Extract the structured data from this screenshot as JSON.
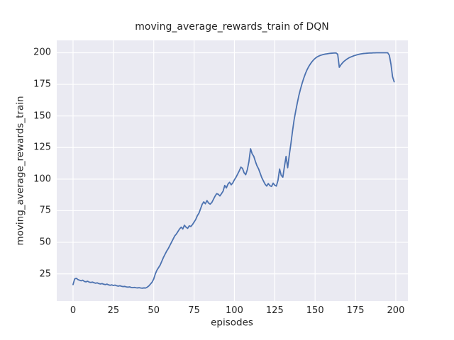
{
  "chart_data": {
    "type": "line",
    "title": "moving_average_rewards_train of DQN",
    "xlabel": "episodes",
    "ylabel": "moving_average_rewards_train",
    "x_ticks": [
      0,
      25,
      50,
      75,
      100,
      125,
      150,
      175,
      200
    ],
    "y_ticks": [
      25,
      50,
      75,
      100,
      125,
      150,
      175,
      200
    ],
    "xlim": [
      -10.1,
      207.5
    ],
    "ylim": [
      3.5,
      209.8
    ],
    "grid": true,
    "legend": "none",
    "style": {
      "line_color": "#4C72B0",
      "axes_background": "#EAEAF2",
      "grid_color": "#FFFFFF",
      "figure_background": "#FFFFFF",
      "text_color": "#262626"
    },
    "series": [
      {
        "name": "DQN",
        "x_start": 0,
        "x_step": 1,
        "values": [
          16.5,
          21.0,
          21.5,
          20.5,
          20.0,
          19.5,
          20.0,
          19.0,
          18.7,
          19.2,
          18.5,
          18.2,
          18.5,
          18.0,
          17.6,
          17.9,
          17.3,
          17.0,
          17.3,
          16.8,
          16.5,
          16.9,
          16.3,
          16.0,
          16.3,
          15.8,
          16.1,
          15.6,
          15.3,
          15.6,
          15.2,
          14.9,
          15.1,
          14.7,
          14.5,
          14.7,
          14.3,
          14.1,
          14.3,
          14.0,
          13.9,
          14.1,
          13.8,
          13.7,
          13.9,
          13.8,
          14.5,
          15.5,
          17.0,
          18.5,
          21.0,
          25.0,
          28.0,
          30.0,
          32.0,
          35.0,
          38.0,
          40.5,
          43.0,
          45.0,
          47.5,
          50.0,
          52.5,
          55.0,
          56.5,
          58.5,
          60.5,
          62.0,
          60.5,
          63.5,
          62.0,
          61.0,
          63.0,
          62.5,
          64.0,
          66.0,
          68.0,
          71.0,
          73.0,
          76.5,
          80.0,
          82.0,
          80.5,
          83.0,
          81.0,
          80.2,
          81.5,
          84.0,
          86.5,
          88.5,
          88.0,
          86.7,
          88.5,
          90.5,
          95.0,
          93.0,
          96.0,
          97.5,
          95.5,
          97.0,
          99.5,
          101.5,
          104.0,
          106.5,
          109.5,
          108.5,
          105.0,
          103.5,
          107.5,
          114.0,
          124.0,
          120.0,
          118.0,
          114.0,
          110.5,
          108.0,
          104.5,
          101.0,
          98.5,
          96.0,
          94.5,
          96.5,
          94.8,
          94.2,
          96.8,
          95.2,
          94.5,
          99.0,
          108.0,
          103.0,
          101.5,
          110.0,
          118.0,
          109.0,
          119.0,
          128.0,
          138.0,
          147.0,
          154.0,
          160.5,
          166.5,
          171.5,
          176.0,
          180.0,
          183.5,
          186.5,
          189.0,
          191.0,
          192.8,
          194.3,
          195.5,
          196.5,
          197.2,
          197.8,
          198.2,
          198.6,
          198.9,
          199.1,
          199.3,
          199.5,
          199.6,
          199.7,
          199.8,
          199.8,
          198.8,
          188.5,
          190.5,
          192.0,
          193.3,
          194.3,
          195.2,
          196.0,
          196.6,
          197.1,
          197.6,
          198.0,
          198.4,
          198.7,
          199.0,
          199.2,
          199.4,
          199.5,
          199.6,
          199.7,
          199.8,
          199.8,
          199.9,
          199.9,
          200.0,
          200.0,
          200.0,
          200.0,
          200.0,
          200.0,
          200.0,
          200.0,
          198.0,
          191.0,
          181.0,
          177.0
        ]
      }
    ]
  }
}
